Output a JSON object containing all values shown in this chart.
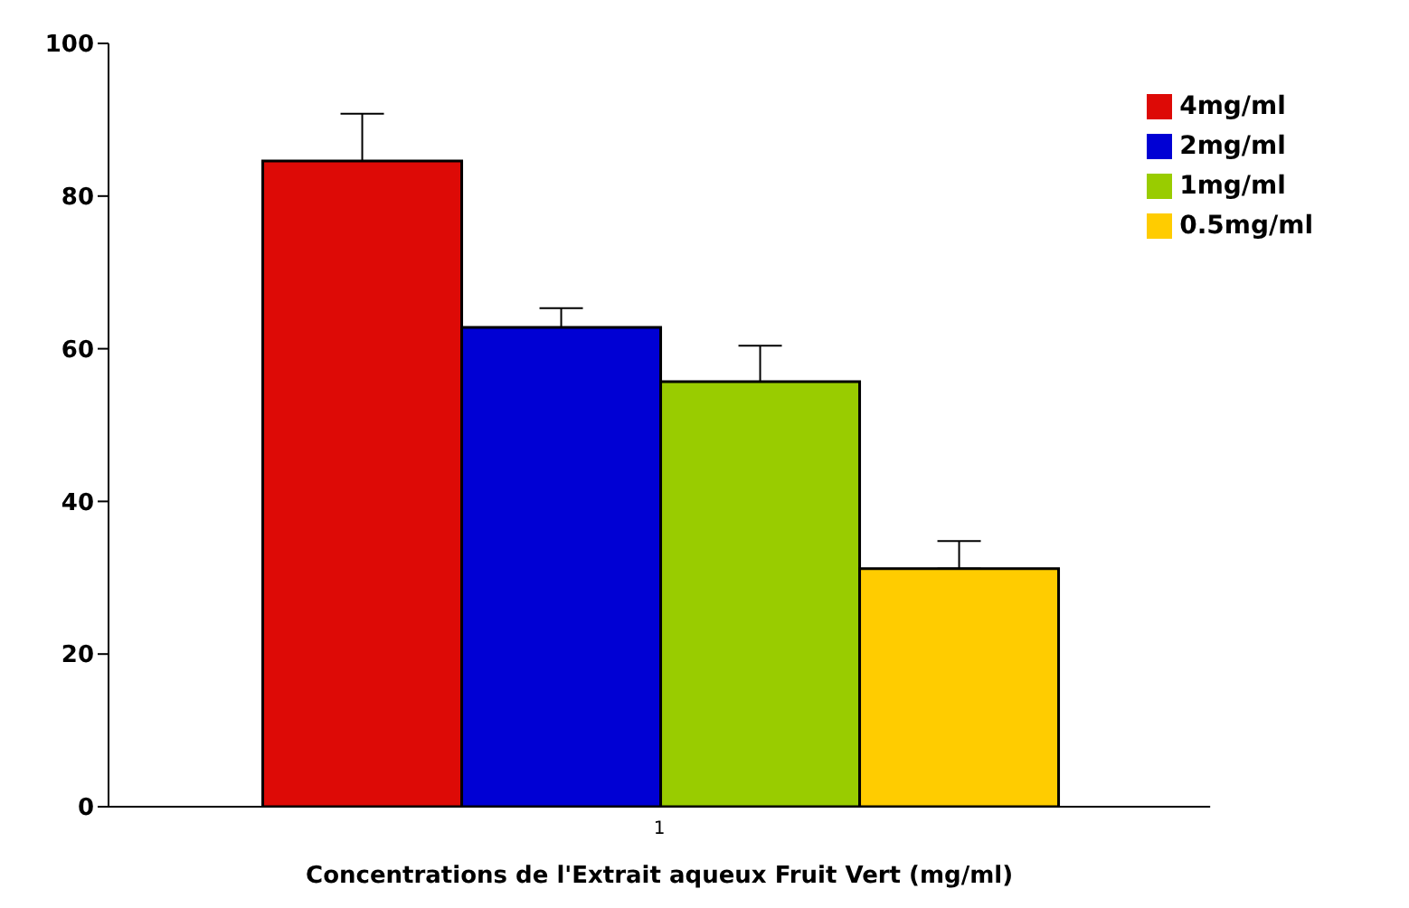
{
  "chart_data": {
    "type": "bar",
    "xlabel": "Concentrations de l'Extrait aqueux Fruit Vert (mg/ml)",
    "categories": [
      "1"
    ],
    "series": [
      {
        "name": "4mg/ml",
        "color": "#dd0a06",
        "values": [
          84.6
        ],
        "errors": [
          [
            84.6,
            90.8
          ]
        ]
      },
      {
        "name": "2mg/ml",
        "color": "#0000d4",
        "values": [
          62.8
        ],
        "errors": [
          [
            62.8,
            65.3
          ]
        ]
      },
      {
        "name": "1mg/ml",
        "color": "#99cc00",
        "values": [
          55.7
        ],
        "errors": [
          [
            55.7,
            60.4
          ]
        ]
      },
      {
        "name": "0.5mg/ml",
        "color": "#ffcc00",
        "values": [
          31.2
        ],
        "errors": [
          [
            31.2,
            34.8
          ]
        ]
      }
    ],
    "ylim": [
      0,
      100
    ],
    "yticks": [
      0,
      20,
      40,
      60,
      80,
      100
    ],
    "grid": false,
    "legend": "top right"
  }
}
